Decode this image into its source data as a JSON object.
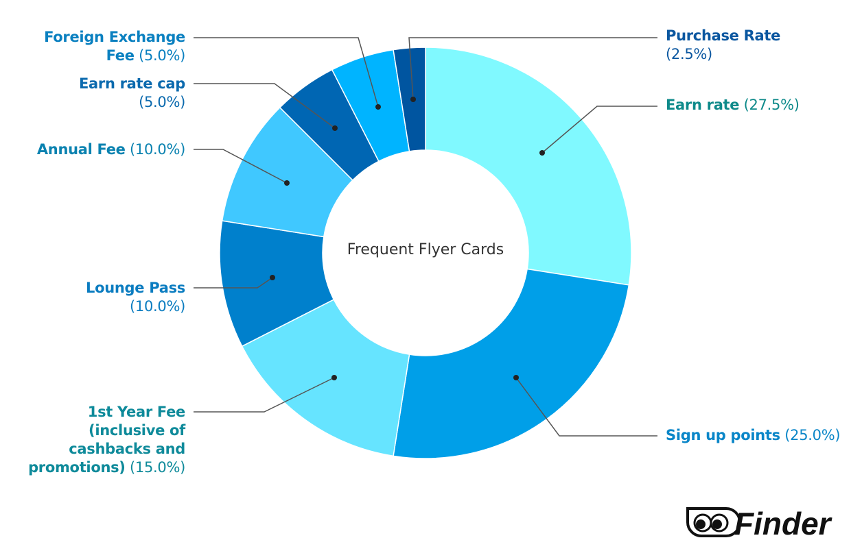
{
  "chart_data": {
    "type": "donut",
    "title": "Frequent Flyer Cards",
    "start_angle": "top",
    "direction": "clockwise",
    "slices": [
      {
        "label": "Earn rate",
        "pct_label": "(27.5%)",
        "value": 27.5,
        "color": "#80F9FF",
        "text_color": "#0E8A8A"
      },
      {
        "label": "Sign up points",
        "pct_label": "(25.0%)",
        "value": 25.0,
        "color": "#009FE8",
        "text_color": "#0A86C8"
      },
      {
        "label": "1st Year Fee (inclusive of cashbacks and promotions)",
        "pct_label": "(15.0%)",
        "value": 15.0,
        "color": "#66E4FF",
        "text_color": "#0E8A9A"
      },
      {
        "label": "Lounge Pass",
        "pct_label": "(10.0%)",
        "value": 10.0,
        "color": "#0080CC",
        "text_color": "#0A7CC0"
      },
      {
        "label": "Annual Fee",
        "pct_label": "(10.0%)",
        "value": 10.0,
        "color": "#40C8FF",
        "text_color": "#0A82B0"
      },
      {
        "label": "Earn rate cap",
        "pct_label": "(5.0%)",
        "value": 5.0,
        "color": "#0066B3",
        "text_color": "#0B6AAE"
      },
      {
        "label": "Foreign Exchange Fee",
        "pct_label": "(5.0%)",
        "value": 5.0,
        "color": "#00B4FF",
        "text_color": "#0A80C0"
      },
      {
        "label": "Purchase Rate",
        "pct_label": "(2.5%)",
        "value": 2.5,
        "color": "#0055A0",
        "text_color": "#0B57A0"
      }
    ]
  },
  "brand": {
    "logo_text": "Finder"
  }
}
